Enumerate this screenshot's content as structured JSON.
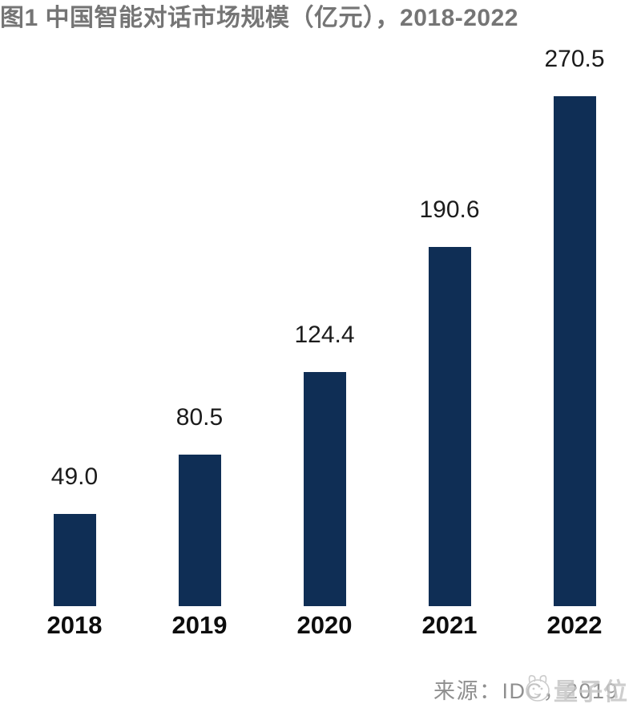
{
  "figure": {
    "title": "图1 中国智能对话市场规模（亿元），2018-2022",
    "source_label": "来源：IDC，2019",
    "watermark_label": "量子位"
  },
  "chart_data": {
    "type": "bar",
    "title": "图1 中国智能对话市场规模（亿元），2018-2022",
    "categories": [
      "2018",
      "2019",
      "2020",
      "2021",
      "2022"
    ],
    "values": [
      49.0,
      80.5,
      124.4,
      190.6,
      270.5
    ],
    "value_labels": [
      "49.0",
      "80.5",
      "124.4",
      "190.6",
      "270.5"
    ],
    "unit": "亿元",
    "xlabel": "",
    "ylabel": "",
    "ylim": [
      0,
      290
    ],
    "grid": false,
    "axes_visible": false,
    "legend": "none",
    "value_label_position": "above-bars",
    "bar_color": "#0f2e55",
    "value_label_color": "#1b1b1b",
    "category_label_color": "#0d0d0d",
    "title_color": "#757575",
    "source": "来源：IDC，2019",
    "watermark": "量子位"
  }
}
